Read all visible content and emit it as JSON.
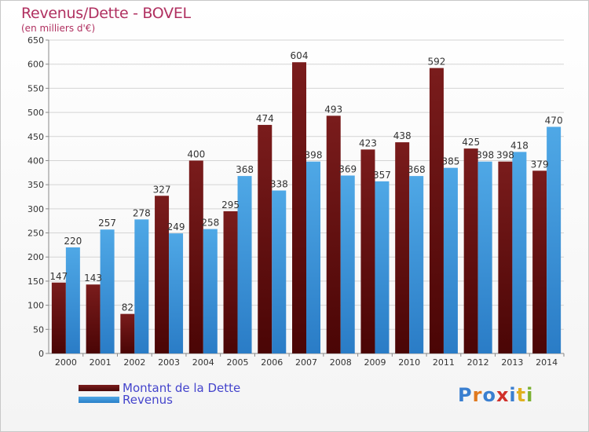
{
  "title": "Revenus/Dette - BOVEL",
  "subtitle": "(en milliers d'€)",
  "logo_text": "Proxiti",
  "colors": {
    "dette": "#7a1c1c",
    "revenus": "#4fa8e6",
    "title": "#b03060",
    "legend_text": "#4444cc"
  },
  "chart_data": {
    "type": "bar",
    "title": "Revenus/Dette - BOVEL",
    "subtitle": "(en milliers d'€)",
    "categories": [
      "2000",
      "2001",
      "2002",
      "2003",
      "2004",
      "2005",
      "2006",
      "2007",
      "2008",
      "2009",
      "2010",
      "2011",
      "2012",
      "2013",
      "2014"
    ],
    "series": [
      {
        "name": "Montant de la Dette",
        "values": [
          147,
          143,
          82,
          327,
          400,
          295,
          474,
          604,
          493,
          423,
          438,
          592,
          425,
          398,
          379
        ]
      },
      {
        "name": "Revenus",
        "values": [
          220,
          257,
          278,
          249,
          258,
          368,
          338,
          398,
          369,
          357,
          368,
          385,
          398,
          418,
          470
        ]
      }
    ],
    "ylim": [
      0,
      650
    ],
    "yticks": [
      0,
      50,
      100,
      150,
      200,
      250,
      300,
      350,
      400,
      450,
      500,
      550,
      600,
      650
    ],
    "grid": true,
    "legend": "bottom-left"
  }
}
